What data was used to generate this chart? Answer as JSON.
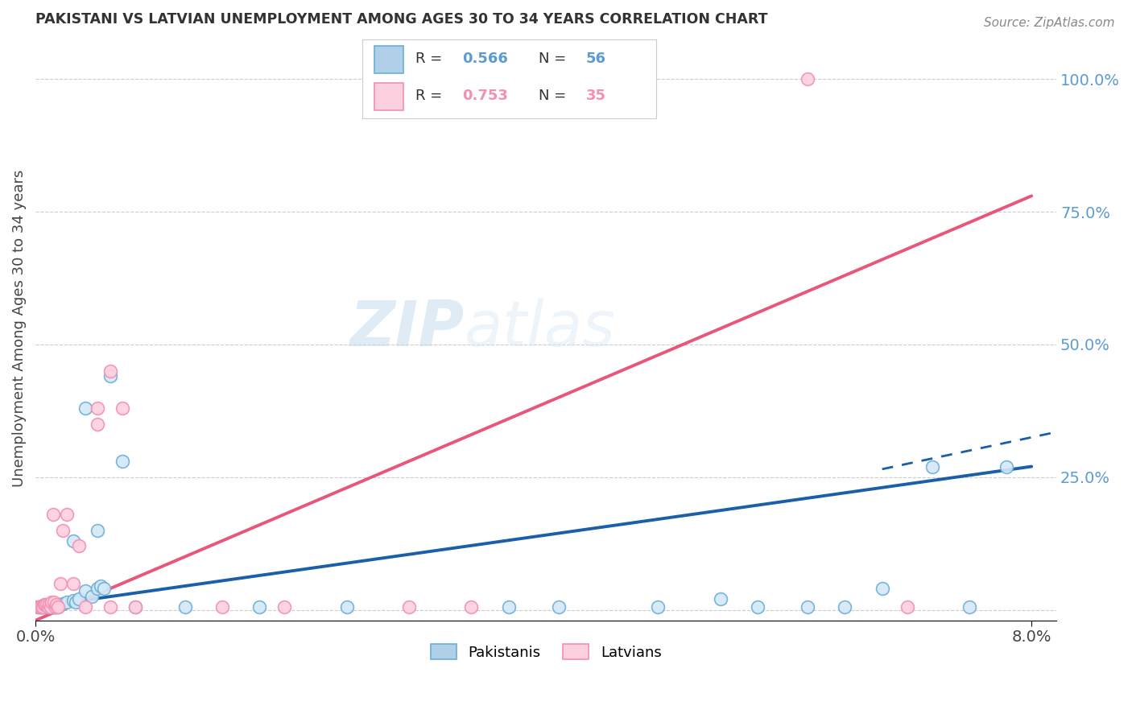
{
  "title": "PAKISTANI VS LATVIAN UNEMPLOYMENT AMONG AGES 30 TO 34 YEARS CORRELATION CHART",
  "source": "Source: ZipAtlas.com",
  "ylabel": "Unemployment Among Ages 30 to 34 years",
  "blue_color": "#6baed6",
  "blue_fill": "#afd0e8",
  "pink_color": "#f48fb1",
  "pink_fill": "#fdd0df",
  "blue_r": "0.566",
  "blue_n": "56",
  "pink_r": "0.753",
  "pink_n": "35",
  "blue_line_color": "#1a5fa8",
  "pink_line_color": "#e8567a",
  "pakistani_x": [
    0.001,
    0.001,
    0.0012,
    0.0014,
    0.0015,
    0.0016,
    0.0018,
    0.002,
    0.0002,
    0.0003,
    0.0004,
    0.0005,
    0.0006,
    0.0007,
    0.0008,
    0.0009,
    0.001,
    0.0011,
    0.0012,
    0.0013,
    0.0014,
    0.0015,
    0.0016,
    0.0017,
    0.0018,
    0.002,
    0.0022,
    0.0025,
    0.003,
    0.0032,
    0.0035,
    0.004,
    0.0045,
    0.005,
    0.0052,
    0.0055,
    0.003,
    0.004,
    0.005,
    0.006,
    0.007,
    0.038,
    0.042,
    0.05,
    0.055,
    0.058,
    0.062,
    0.065,
    0.068,
    0.072,
    0.075,
    0.078,
    0.008,
    0.012,
    0.018,
    0.025
  ],
  "pakistani_y": [
    0.005,
    0.008,
    0.005,
    0.01,
    0.008,
    0.005,
    0.008,
    0.01,
    0.005,
    0.005,
    0.005,
    0.005,
    0.005,
    0.005,
    0.005,
    0.005,
    0.005,
    0.005,
    0.008,
    0.005,
    0.005,
    0.005,
    0.005,
    0.008,
    0.005,
    0.01,
    0.012,
    0.015,
    0.018,
    0.015,
    0.02,
    0.035,
    0.025,
    0.04,
    0.045,
    0.04,
    0.13,
    0.38,
    0.15,
    0.44,
    0.28,
    0.005,
    0.005,
    0.005,
    0.02,
    0.005,
    0.005,
    0.005,
    0.04,
    0.27,
    0.005,
    0.27,
    0.005,
    0.005,
    0.005,
    0.005
  ],
  "latvian_x": [
    0.0002,
    0.0003,
    0.0004,
    0.0005,
    0.0006,
    0.0007,
    0.0008,
    0.0009,
    0.001,
    0.0011,
    0.0012,
    0.0013,
    0.0014,
    0.0015,
    0.0016,
    0.0017,
    0.0018,
    0.002,
    0.0022,
    0.0025,
    0.003,
    0.0035,
    0.004,
    0.005,
    0.006,
    0.008,
    0.015,
    0.02,
    0.03,
    0.005,
    0.006,
    0.007,
    0.035,
    0.062,
    0.07
  ],
  "latvian_y": [
    0.005,
    0.005,
    0.005,
    0.005,
    0.005,
    0.01,
    0.01,
    0.01,
    0.005,
    0.01,
    0.005,
    0.015,
    0.18,
    0.015,
    0.005,
    0.01,
    0.005,
    0.05,
    0.15,
    0.18,
    0.05,
    0.12,
    0.005,
    0.35,
    0.005,
    0.005,
    0.005,
    0.005,
    0.005,
    0.38,
    0.45,
    0.38,
    0.005,
    1.0,
    0.005
  ],
  "blue_trend": [
    0.0,
    0.08,
    0.005,
    0.27
  ],
  "blue_dash": [
    0.068,
    0.082,
    0.265,
    0.335
  ],
  "pink_trend": [
    0.0,
    0.08,
    -0.02,
    0.78
  ],
  "xlim": [
    0,
    0.082
  ],
  "ylim": [
    -0.02,
    1.08
  ],
  "yticks": [
    0,
    0.25,
    0.5,
    0.75,
    1.0
  ],
  "ytick_labels": [
    "",
    "25.0%",
    "50.0%",
    "75.0%",
    "100.0%"
  ],
  "xtick_labels": [
    "0.0%",
    "8.0%"
  ],
  "xtick_vals": [
    0,
    0.08
  ],
  "watermark_zip": "ZIP",
  "watermark_atlas": "atlas",
  "background_color": "#ffffff",
  "grid_color": "#cccccc"
}
